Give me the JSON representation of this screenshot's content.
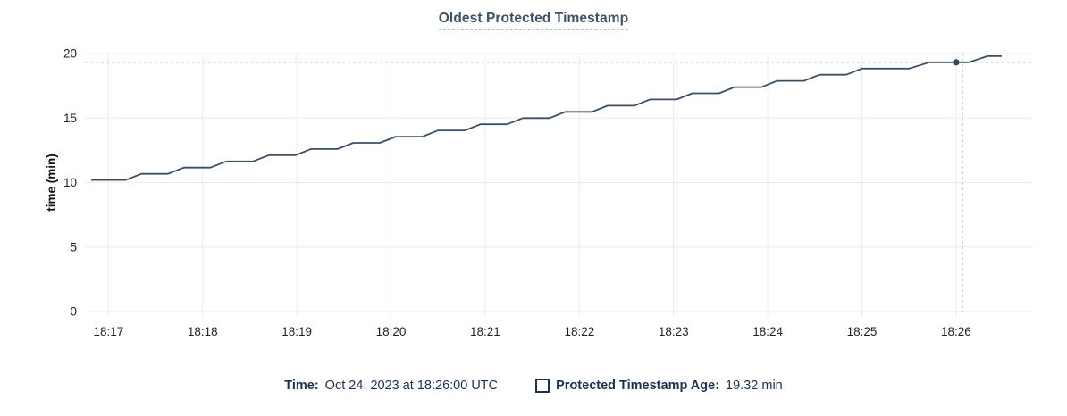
{
  "header": {
    "title": "Oldest Protected Timestamp"
  },
  "colors": {
    "line": "#3d4e63",
    "marker": "#34455a",
    "grid": "#ececec",
    "crosshair": "#a2b7c9",
    "tick_text": "#1f1f1f",
    "axis_label_text": "#111111",
    "title_text": "#3e5368",
    "legend_text": "#1c3150"
  },
  "chart_data": {
    "type": "line",
    "title": "Oldest Protected Timestamp",
    "xlabel": "",
    "ylabel": "time (min)",
    "ylim": [
      0,
      20
    ],
    "y_ticks": [
      0,
      5,
      10,
      15,
      20
    ],
    "x_tick_labels": [
      "18:17",
      "18:18",
      "18:19",
      "18:20",
      "18:21",
      "18:22",
      "18:23",
      "18:24",
      "18:25",
      "18:26"
    ],
    "x_tick_seconds": [
      60,
      120,
      180,
      240,
      300,
      360,
      420,
      480,
      540,
      600
    ],
    "x_domain_seconds": [
      45,
      649
    ],
    "grid": true,
    "legend_position": "bottom",
    "series": [
      {
        "name": "Protected Timestamp Age",
        "unit": "min",
        "points": [
          [
            49,
            10.2
          ],
          [
            71,
            10.2
          ],
          [
            81,
            10.68
          ],
          [
            98,
            10.68
          ],
          [
            108,
            11.16
          ],
          [
            125,
            11.16
          ],
          [
            135,
            11.64
          ],
          [
            152,
            11.64
          ],
          [
            162,
            12.12
          ],
          [
            179,
            12.12
          ],
          [
            189,
            12.6
          ],
          [
            206,
            12.6
          ],
          [
            216,
            13.08
          ],
          [
            233,
            13.08
          ],
          [
            243,
            13.56
          ],
          [
            260,
            13.56
          ],
          [
            270,
            14.04
          ],
          [
            287,
            14.04
          ],
          [
            297,
            14.52
          ],
          [
            314,
            14.52
          ],
          [
            324,
            15.0
          ],
          [
            341,
            15.0
          ],
          [
            351,
            15.48
          ],
          [
            368,
            15.48
          ],
          [
            378,
            15.96
          ],
          [
            395,
            15.96
          ],
          [
            405,
            16.44
          ],
          [
            422,
            16.44
          ],
          [
            432,
            16.92
          ],
          [
            449,
            16.92
          ],
          [
            459,
            17.4
          ],
          [
            476,
            17.4
          ],
          [
            486,
            17.88
          ],
          [
            503,
            17.88
          ],
          [
            513,
            18.36
          ],
          [
            530,
            18.36
          ],
          [
            540,
            18.84
          ],
          [
            570,
            18.84
          ],
          [
            583,
            19.32
          ],
          [
            608,
            19.32
          ],
          [
            620,
            19.8
          ],
          [
            629,
            19.8
          ]
        ]
      }
    ],
    "hover_point": {
      "t_seconds": 600,
      "value": 19.32
    },
    "crosshair_t_seconds": 604
  },
  "legend": {
    "time_key": "Time:",
    "time_value": "Oct 24, 2023 at 18:26:00 UTC",
    "series_key": "Protected Timestamp Age:",
    "series_value": "19.32 min"
  }
}
